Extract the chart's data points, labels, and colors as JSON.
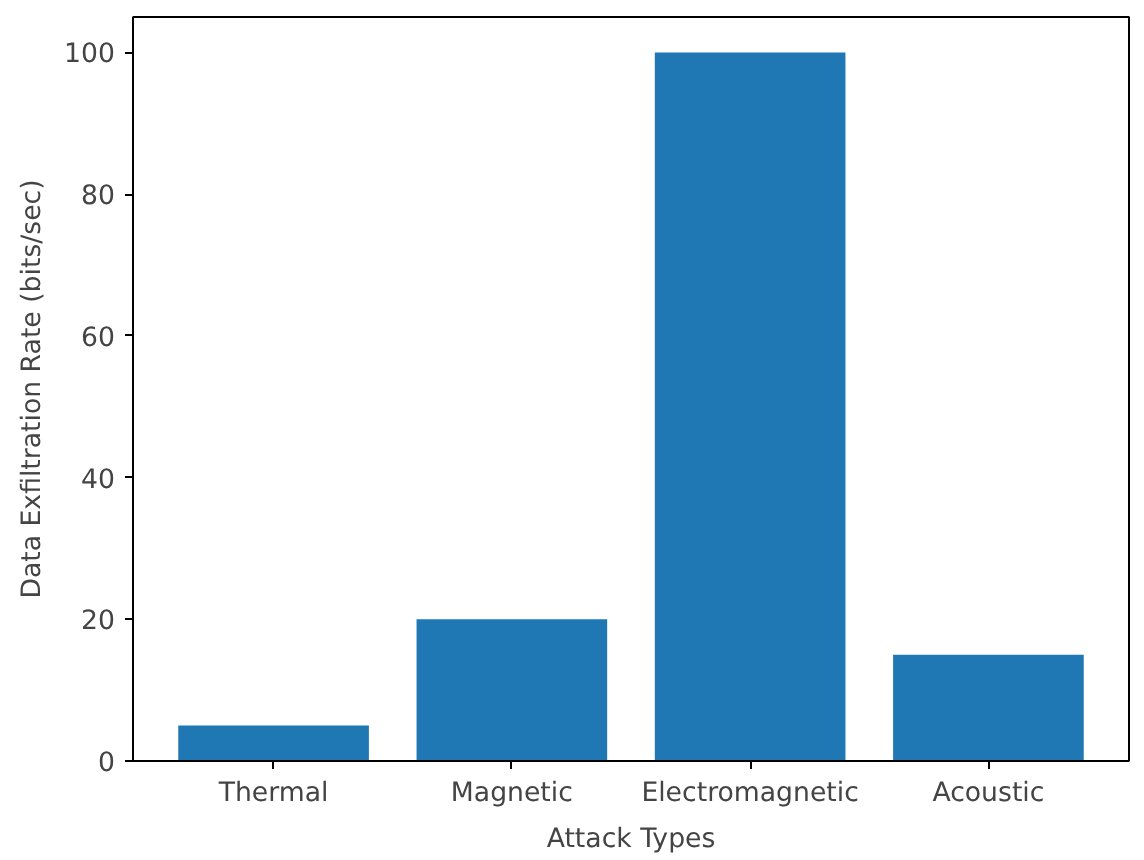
{
  "chart_data": {
    "type": "bar",
    "xlabel": "Attack Types",
    "ylabel": "Data Exfiltration Rate (bits/sec)",
    "categories": [
      "Thermal",
      "Magnetic",
      "Electromagnetic",
      "Acoustic"
    ],
    "values": [
      5,
      20,
      100,
      15
    ],
    "color": "#1f77b4",
    "ylim": [
      0,
      105
    ],
    "yticks": [
      0,
      20,
      40,
      60,
      80,
      100
    ],
    "grid": false
  }
}
